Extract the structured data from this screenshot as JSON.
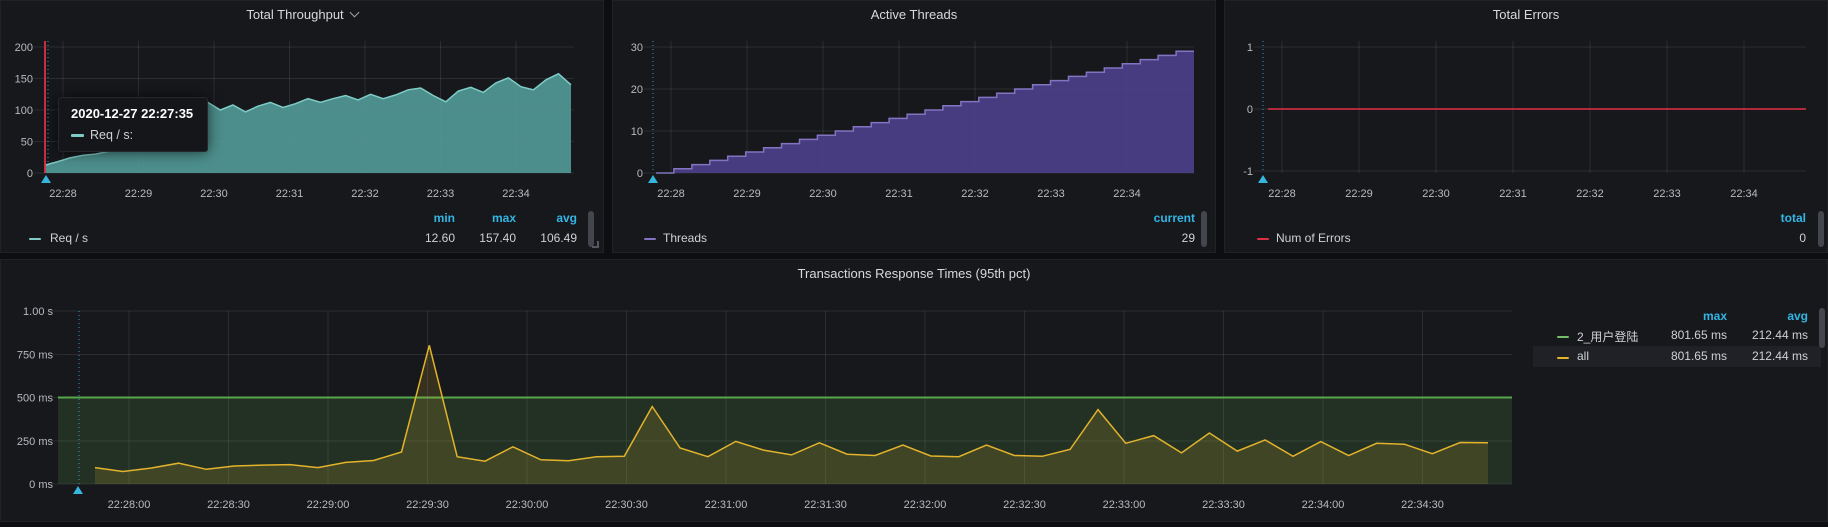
{
  "panels": {
    "throughput": {
      "title": "Total Throughput",
      "tooltip": {
        "timestamp": "2020-12-27 22:27:35",
        "series_label": "Req / s:"
      },
      "legend": {
        "headers": [
          "min",
          "max",
          "avg"
        ],
        "row": {
          "label": "Req / s",
          "min": "12.60",
          "max": "157.40",
          "avg": "106.49"
        }
      }
    },
    "threads": {
      "title": "Active Threads",
      "legend": {
        "headers": [
          "current"
        ],
        "row": {
          "label": "Threads",
          "current": "29"
        }
      }
    },
    "errors": {
      "title": "Total Errors",
      "legend": {
        "headers": [
          "total"
        ],
        "row": {
          "label": "Num of Errors",
          "total": "0"
        }
      }
    },
    "response": {
      "title": "Transactions Response Times (95th pct)",
      "legend": {
        "headers": [
          "max",
          "avg"
        ],
        "rows": [
          {
            "label": "2_用户登陆",
            "max": "801.65 ms",
            "avg": "212.44 ms"
          },
          {
            "label": "all",
            "max": "801.65 ms",
            "avg": "212.44 ms"
          }
        ]
      }
    }
  },
  "colors": {
    "teal_line": "#7fccc6",
    "teal_fill": "rgba(84,158,155,0.88)",
    "purple_line": "#8473c0",
    "purple_fill": "rgba(77,64,138,0.92)",
    "red": "#e02f44",
    "green": "#73bf69",
    "threshold_line": "#56a64b",
    "threshold_fill": "rgba(86,166,75,0.18)",
    "yellow_line": "#e3b32c",
    "yellow_fill": "rgba(227,179,44,0.16)",
    "stat_header_blue": "#33b5e5",
    "crosshair": "#33b5e5",
    "marker": "#35b6dc"
  },
  "chart_data": [
    {
      "id": "throughput",
      "type": "area",
      "title": "Total Throughput",
      "xlabel": "",
      "ylabel": "",
      "ylim": [
        0,
        200
      ],
      "grid": true,
      "legend_position": "bottom",
      "yticks": [
        {
          "v": 200,
          "label": "200"
        },
        {
          "v": 150,
          "label": "150"
        },
        {
          "v": 100,
          "label": "100"
        },
        {
          "v": 50,
          "label": "50"
        },
        {
          "v": 0,
          "label": "0"
        }
      ],
      "xticks": [
        "22:28",
        "22:29",
        "22:30",
        "22:31",
        "22:32",
        "22:33",
        "22:34"
      ],
      "series": [
        {
          "name": "Req / s",
          "values": [
            12.6,
            18,
            24,
            28,
            30,
            34,
            42,
            52,
            60,
            68,
            76,
            84,
            90,
            112,
            100,
            108,
            97,
            106,
            112,
            104,
            110,
            118,
            112,
            118,
            123,
            116,
            125,
            118,
            124,
            132,
            135,
            123,
            113,
            130,
            136,
            128,
            143,
            151,
            137,
            132,
            148,
            157.4,
            140
          ]
        }
      ],
      "stats": {
        "min": 12.6,
        "max": 157.4,
        "avg": 106.49
      }
    },
    {
      "id": "threads",
      "type": "area_step",
      "title": "Active Threads",
      "xlabel": "",
      "ylabel": "",
      "ylim": [
        0,
        30
      ],
      "grid": true,
      "legend_position": "bottom",
      "yticks": [
        {
          "v": 30,
          "label": "30"
        },
        {
          "v": 20,
          "label": "20"
        },
        {
          "v": 10,
          "label": "10"
        },
        {
          "v": 0,
          "label": "0"
        }
      ],
      "xticks": [
        "22:28",
        "22:29",
        "22:30",
        "22:31",
        "22:32",
        "22:33",
        "22:34"
      ],
      "series": [
        {
          "name": "Threads",
          "values": [
            0,
            1,
            2,
            3,
            4,
            5,
            6,
            7,
            8,
            9,
            10,
            11,
            12,
            13,
            14,
            15,
            16,
            17,
            18,
            19,
            20,
            21,
            22,
            23,
            24,
            25,
            26,
            27,
            28,
            29
          ]
        }
      ],
      "stats": {
        "current": 29
      }
    },
    {
      "id": "errors",
      "type": "line",
      "title": "Total Errors",
      "xlabel": "",
      "ylabel": "",
      "ylim": [
        -1,
        1
      ],
      "grid": true,
      "legend_position": "bottom",
      "yticks": [
        {
          "v": 1,
          "label": "1"
        },
        {
          "v": 0,
          "label": "0"
        },
        {
          "v": -1,
          "label": "-1"
        }
      ],
      "xticks": [
        "22:28",
        "22:29",
        "22:30",
        "22:31",
        "22:32",
        "22:33",
        "22:34"
      ],
      "series": [
        {
          "name": "Num of Errors",
          "values": [
            0,
            0
          ]
        }
      ],
      "stats": {
        "total": 0
      }
    },
    {
      "id": "response",
      "type": "line",
      "title": "Transactions Response Times (95th pct)",
      "xlabel": "",
      "ylabel": "",
      "ylim_ms": [
        0,
        1000
      ],
      "grid": true,
      "legend_position": "right",
      "threshold": {
        "value_ms": 500
      },
      "yticks": [
        {
          "v": 1000,
          "label": "1.00 s"
        },
        {
          "v": 750,
          "label": "750 ms"
        },
        {
          "v": 500,
          "label": "500 ms"
        },
        {
          "v": 250,
          "label": "250 ms"
        },
        {
          "v": 0,
          "label": "0 ms"
        }
      ],
      "xticks": [
        "22:28:00",
        "22:28:30",
        "22:29:00",
        "22:29:30",
        "22:30:00",
        "22:30:30",
        "22:31:00",
        "22:31:30",
        "22:32:00",
        "22:32:30",
        "22:33:00",
        "22:33:30",
        "22:34:00",
        "22:34:30"
      ],
      "series": [
        {
          "name": "2_用户登陆",
          "hidden_under": "all",
          "values": [
            95,
            72,
            92,
            120,
            85,
            104,
            109,
            112,
            95,
            125,
            136,
            185,
            801.65,
            158,
            132,
            215,
            140,
            134,
            158,
            160,
            448,
            208,
            158,
            246,
            196,
            168,
            238,
            172,
            165,
            225,
            162,
            158,
            225,
            165,
            160,
            200,
            430,
            235,
            280,
            180,
            295,
            190,
            255,
            160,
            245,
            165,
            235,
            230,
            175,
            240,
            238
          ]
        },
        {
          "name": "all",
          "values": [
            95,
            72,
            92,
            120,
            85,
            104,
            109,
            112,
            95,
            125,
            136,
            185,
            801.65,
            158,
            132,
            215,
            140,
            134,
            158,
            160,
            448,
            208,
            158,
            246,
            196,
            168,
            238,
            172,
            165,
            225,
            162,
            158,
            225,
            165,
            160,
            200,
            430,
            235,
            280,
            180,
            295,
            190,
            255,
            160,
            245,
            165,
            235,
            230,
            175,
            240,
            238
          ]
        }
      ],
      "stats": [
        {
          "name": "2_用户登陆",
          "max_ms": 801.65,
          "avg_ms": 212.44
        },
        {
          "name": "all",
          "max_ms": 801.65,
          "avg_ms": 212.44
        }
      ]
    }
  ]
}
